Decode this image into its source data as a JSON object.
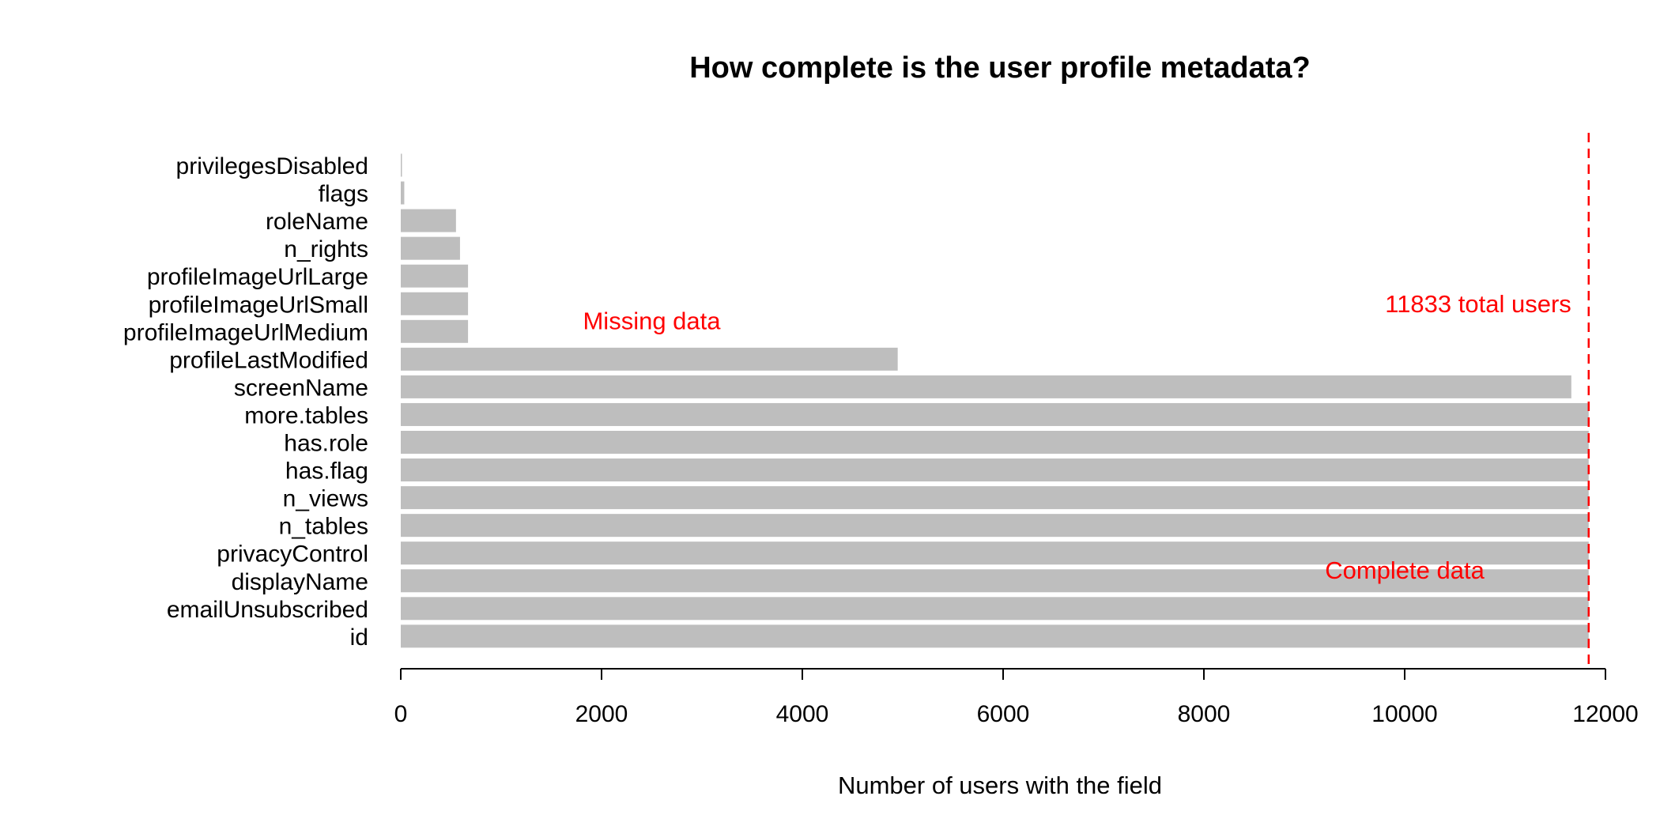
{
  "chart_data": {
    "type": "bar",
    "orientation": "horizontal",
    "title": "How complete is the user profile metadata?",
    "xlabel": "Number of users with the field",
    "ylabel": "",
    "xlim": [
      0,
      12000
    ],
    "x_ticks": [
      0,
      2000,
      4000,
      6000,
      8000,
      10000,
      12000
    ],
    "categories": [
      "privilegesDisabled",
      "flags",
      "roleName",
      "n_rights",
      "profileImageUrlLarge",
      "profileImageUrlSmall",
      "profileImageUrlMedium",
      "profileLastModified",
      "screenName",
      "more.tables",
      "has.role",
      "has.flag",
      "n_views",
      "n_tables",
      "privacyControl",
      "displayName",
      "emailUnsubscribed",
      "id"
    ],
    "values": [
      5,
      35,
      550,
      590,
      670,
      670,
      670,
      4950,
      11660,
      11833,
      11833,
      11833,
      11833,
      11833,
      11833,
      11833,
      11833,
      11833
    ],
    "bar_color": "#bebebe",
    "reference_line": {
      "value": 11833,
      "label": "11833 total users",
      "color": "#ff0000",
      "style": "dashed"
    },
    "annotations": [
      {
        "text": "Missing data",
        "x": 2500,
        "category": "profileImageUrlMedium",
        "color": "#ff0000"
      },
      {
        "text": "Complete data",
        "x": 10000,
        "category": "displayName",
        "color": "#ff0000"
      }
    ],
    "grid": false
  }
}
